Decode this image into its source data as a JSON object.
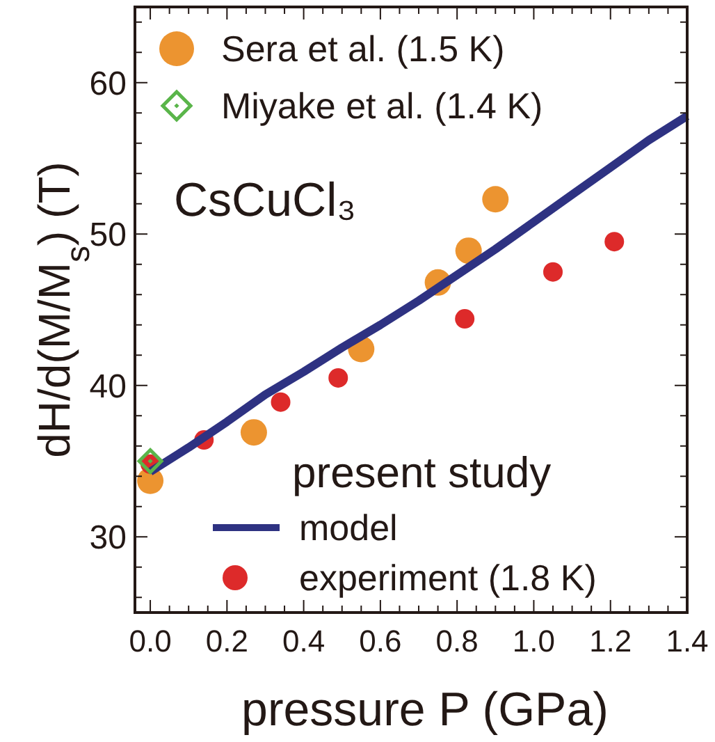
{
  "chart_data": {
    "type": "scatter",
    "xlabel": "pressure P (GPa)",
    "ylabel": "dH/d(M/M$_{s}$)  (T)",
    "xlim": [
      -0.04,
      1.4
    ],
    "ylim": [
      25,
      65
    ],
    "xticks": [
      {
        "value": 0,
        "label": "0.0"
      },
      {
        "value": 0.05,
        "label": null
      },
      {
        "value": 0.1,
        "label": null
      },
      {
        "value": 0.15,
        "label": null
      },
      {
        "value": 0.2,
        "label": "0.2"
      },
      {
        "value": 0.25,
        "label": null
      },
      {
        "value": 0.3,
        "label": null
      },
      {
        "value": 0.35,
        "label": null
      },
      {
        "value": 0.4,
        "label": "0.4"
      },
      {
        "value": 0.45,
        "label": null
      },
      {
        "value": 0.5,
        "label": null
      },
      {
        "value": 0.55,
        "label": null
      },
      {
        "value": 0.6,
        "label": "0.6"
      },
      {
        "value": 0.65,
        "label": null
      },
      {
        "value": 0.7,
        "label": null
      },
      {
        "value": 0.75,
        "label": null
      },
      {
        "value": 0.8,
        "label": "0.8"
      },
      {
        "value": 0.85,
        "label": null
      },
      {
        "value": 0.9,
        "label": null
      },
      {
        "value": 0.95,
        "label": null
      },
      {
        "value": 1.0,
        "label": "1.0"
      },
      {
        "value": 1.05,
        "label": null
      },
      {
        "value": 1.1,
        "label": null
      },
      {
        "value": 1.15,
        "label": null
      },
      {
        "value": 1.2,
        "label": "1.2"
      },
      {
        "value": 1.25,
        "label": null
      },
      {
        "value": 1.3,
        "label": null
      },
      {
        "value": 1.35,
        "label": null
      },
      {
        "value": 1.4,
        "label": "1.4"
      }
    ],
    "yticks": [
      {
        "value": 26,
        "label": null
      },
      {
        "value": 28,
        "label": null
      },
      30,
      {
        "value": 32,
        "label": null
      },
      {
        "value": 34,
        "label": null
      },
      {
        "value": 36,
        "label": null
      },
      {
        "value": 38,
        "label": null
      },
      40,
      {
        "value": 42,
        "label": null
      },
      {
        "value": 44,
        "label": null
      },
      {
        "value": 46,
        "label": null
      },
      {
        "value": 48,
        "label": null
      },
      50,
      {
        "value": 52,
        "label": null
      },
      {
        "value": 54,
        "label": null
      },
      {
        "value": 56,
        "label": null
      },
      {
        "value": 58,
        "label": null
      },
      60,
      {
        "value": 62,
        "label": null
      },
      {
        "value": 64,
        "label": null
      }
    ],
    "legend": "left",
    "legend_title": "present study",
    "grid": false,
    "annotations": [
      "CsCuCl₃"
    ],
    "series": [
      {
        "name": "Sera et al. (1.5 K)",
        "marker": "circle",
        "color": "#ec9430",
        "x": [
          0,
          0.27,
          0.55,
          0.75,
          0.83,
          0.9
        ],
        "values": [
          33.7,
          36.9,
          42.4,
          46.8,
          48.9,
          52.3
        ]
      },
      {
        "name": "Miyake et al. (1.4 K)",
        "marker": "diamond",
        "color": "#5ab54a",
        "x": [
          0
        ],
        "values": [
          35.0
        ]
      },
      {
        "name": "model",
        "type": "line",
        "marker": "none",
        "color": "#2e3282",
        "x": [
          0,
          0.1,
          0.2,
          0.3,
          0.4,
          0.5,
          0.6,
          0.7,
          0.8,
          0.9,
          1.0,
          1.1,
          1.2,
          1.3,
          1.4
        ],
        "values": [
          34.3,
          35.9,
          37.6,
          39.4,
          40.9,
          42.5,
          44.0,
          45.6,
          47.3,
          49.0,
          50.8,
          52.6,
          54.4,
          56.2,
          57.8
        ]
      },
      {
        "name": "experiment (1.8 K)",
        "marker": "circle",
        "color": "#dd2a2a",
        "x": [
          0,
          0.14,
          0.34,
          0.49,
          0.82,
          1.05,
          1.21
        ],
        "values": [
          34.8,
          36.4,
          38.9,
          40.5,
          44.4,
          47.5,
          49.5
        ]
      }
    ]
  }
}
